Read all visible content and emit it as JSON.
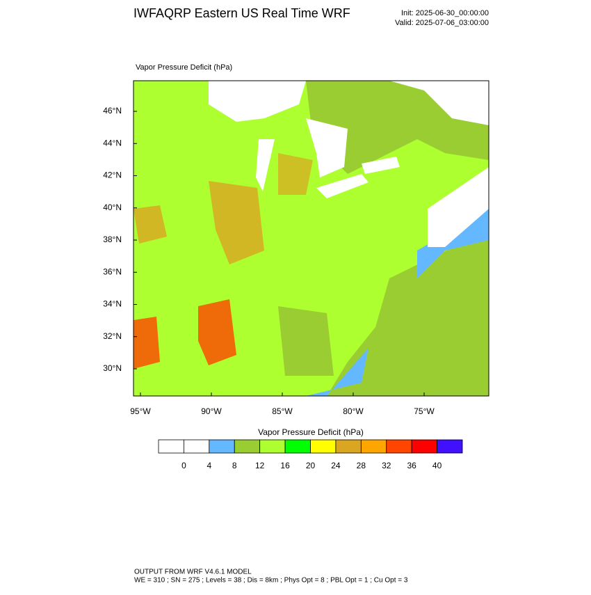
{
  "header": {
    "title": "IWFAQRP Eastern US Real Time WRF",
    "init": "Init: 2025-06-30_00:00:00",
    "valid": "Valid: 2025-07-06_03:00:00"
  },
  "map": {
    "title": "Vapor Pressure Deficit   (hPa)",
    "lon_labels": [
      "95°W",
      "90°W",
      "85°W",
      "80°W",
      "75°W"
    ],
    "lat_labels": [
      "46°N",
      "44°N",
      "42°N",
      "40°N",
      "38°N",
      "36°N",
      "34°N",
      "32°N",
      "30°N"
    ]
  },
  "colorbar": {
    "title": "Vapor Pressure Deficit  (hPa)",
    "colors": [
      "#ffffff",
      "#ffffff",
      "#63b8ff",
      "#9acd32",
      "#adff2f",
      "#00ff00",
      "#ffff00",
      "#daa520",
      "#ffa500",
      "#ff4500",
      "#ff0000",
      "#4010ff"
    ],
    "levels": [
      0,
      4,
      8,
      12,
      16,
      20,
      24,
      28,
      32,
      36,
      40
    ]
  },
  "footer": {
    "line1": "OUTPUT FROM WRF V4.6.1 MODEL",
    "line2": "WE = 310 ; SN = 275 ; Levels = 38 ; Dis = 8km ; Phys Opt = 8 ; PBL Opt = 1 ; Cu Opt = 3"
  }
}
